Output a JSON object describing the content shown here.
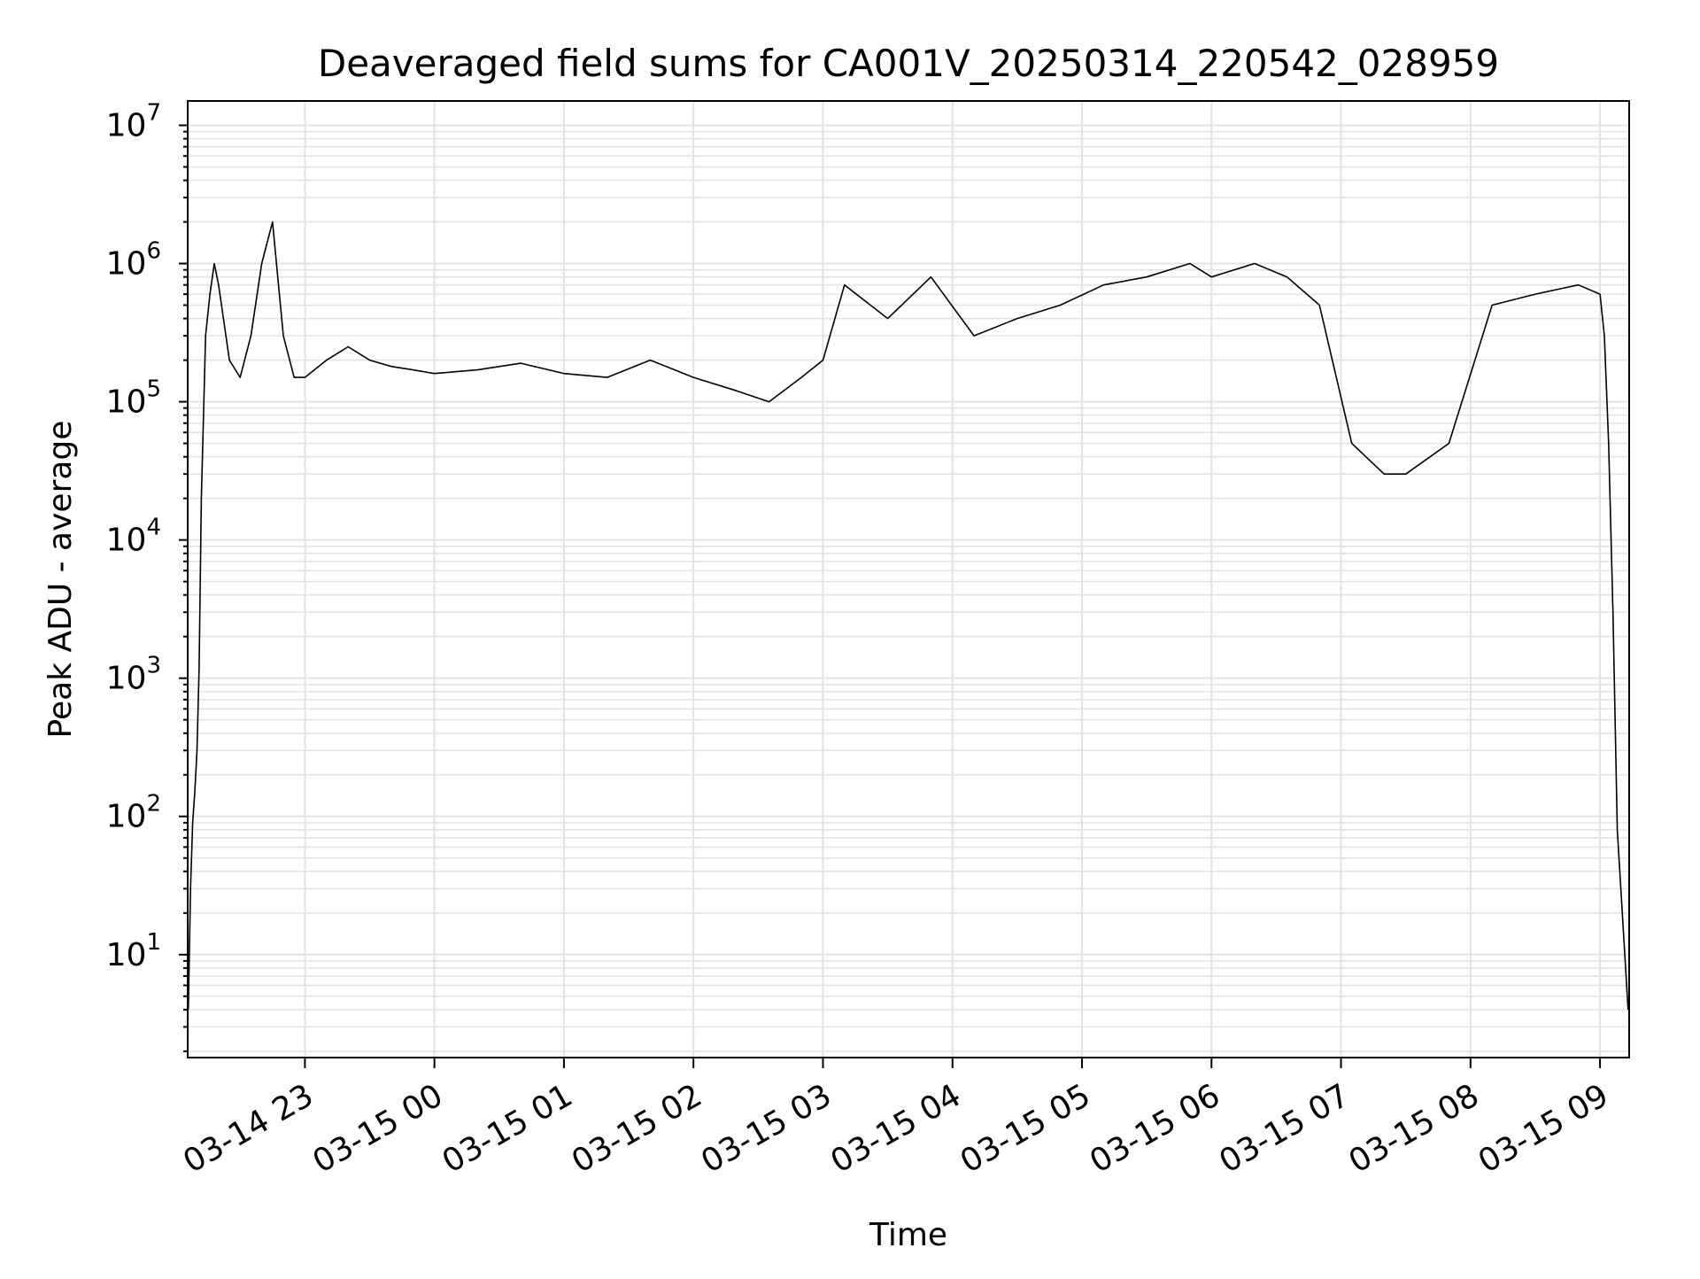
{
  "chart_data": {
    "type": "line",
    "title": "Deaveraged field sums for CA001V_20250314_220542_028959",
    "xlabel": "Time",
    "ylabel": "Peak ADU - average",
    "y_scale": "log",
    "ylim": [
      1.8,
      15000000
    ],
    "xlim": [
      "2025-03-14 22:05:42",
      "2025-03-15 09:13:30"
    ],
    "grid": true,
    "legend": "none",
    "x_ticks": [
      {
        "label": "03-14 23",
        "value": "2025-03-14 23:00"
      },
      {
        "label": "03-15 00",
        "value": "2025-03-15 00:00"
      },
      {
        "label": "03-15 01",
        "value": "2025-03-15 01:00"
      },
      {
        "label": "03-15 02",
        "value": "2025-03-15 02:00"
      },
      {
        "label": "03-15 03",
        "value": "2025-03-15 03:00"
      },
      {
        "label": "03-15 04",
        "value": "2025-03-15 04:00"
      },
      {
        "label": "03-15 05",
        "value": "2025-03-15 05:00"
      },
      {
        "label": "03-15 06",
        "value": "2025-03-15 06:00"
      },
      {
        "label": "03-15 07",
        "value": "2025-03-15 07:00"
      },
      {
        "label": "03-15 08",
        "value": "2025-03-15 08:00"
      },
      {
        "label": "03-15 09",
        "value": "2025-03-15 09:00"
      }
    ],
    "y_ticks": [
      {
        "base": "10",
        "exp": "1",
        "value": 10
      },
      {
        "base": "10",
        "exp": "2",
        "value": 100
      },
      {
        "base": "10",
        "exp": "3",
        "value": 1000
      },
      {
        "base": "10",
        "exp": "4",
        "value": 10000
      },
      {
        "base": "10",
        "exp": "5",
        "value": 100000
      },
      {
        "base": "10",
        "exp": "6",
        "value": 1000000
      },
      {
        "base": "10",
        "exp": "7",
        "value": 10000000
      }
    ],
    "series": [
      {
        "color": "#000000",
        "x": [
          "2025-03-14 22:06",
          "2025-03-14 22:07",
          "2025-03-14 22:08",
          "2025-03-14 22:09",
          "2025-03-14 22:10",
          "2025-03-14 22:11",
          "2025-03-14 22:12",
          "2025-03-14 22:14",
          "2025-03-14 22:16",
          "2025-03-14 22:18",
          "2025-03-14 22:20",
          "2025-03-14 22:25",
          "2025-03-14 22:30",
          "2025-03-14 22:35",
          "2025-03-14 22:40",
          "2025-03-14 22:45",
          "2025-03-14 22:50",
          "2025-03-14 22:55",
          "2025-03-14 23:00",
          "2025-03-14 23:10",
          "2025-03-14 23:20",
          "2025-03-14 23:30",
          "2025-03-14 23:40",
          "2025-03-14 23:50",
          "2025-03-15 00:00",
          "2025-03-15 00:20",
          "2025-03-15 00:40",
          "2025-03-15 01:00",
          "2025-03-15 01:20",
          "2025-03-15 01:40",
          "2025-03-15 02:00",
          "2025-03-15 02:20",
          "2025-03-15 02:35",
          "2025-03-15 02:50",
          "2025-03-15 03:00",
          "2025-03-15 03:10",
          "2025-03-15 03:30",
          "2025-03-15 03:50",
          "2025-03-15 04:10",
          "2025-03-15 04:30",
          "2025-03-15 04:50",
          "2025-03-15 05:10",
          "2025-03-15 05:30",
          "2025-03-15 05:50",
          "2025-03-15 06:00",
          "2025-03-15 06:20",
          "2025-03-15 06:35",
          "2025-03-15 06:50",
          "2025-03-15 07:05",
          "2025-03-15 07:20",
          "2025-03-15 07:30",
          "2025-03-15 07:50",
          "2025-03-15 08:10",
          "2025-03-15 08:30",
          "2025-03-15 08:50",
          "2025-03-15 09:00",
          "2025-03-15 09:02",
          "2025-03-15 09:04",
          "2025-03-15 09:06",
          "2025-03-15 09:08",
          "2025-03-15 09:13"
        ],
        "values": [
          4,
          30,
          90,
          150,
          300,
          1200,
          20000,
          300000,
          600000,
          1000000,
          700000,
          200000,
          150000,
          300000,
          1000000,
          2000000,
          300000,
          150000,
          150000,
          200000,
          250000,
          200000,
          180000,
          170000,
          160000,
          170000,
          190000,
          160000,
          150000,
          200000,
          150000,
          120000,
          100000,
          150000,
          200000,
          700000,
          400000,
          800000,
          300000,
          400000,
          500000,
          700000,
          800000,
          1000000,
          800000,
          1000000,
          800000,
          500000,
          50000,
          30000,
          30000,
          50000,
          500000,
          600000,
          700000,
          600000,
          300000,
          50000,
          3000,
          80,
          4
        ]
      }
    ]
  }
}
